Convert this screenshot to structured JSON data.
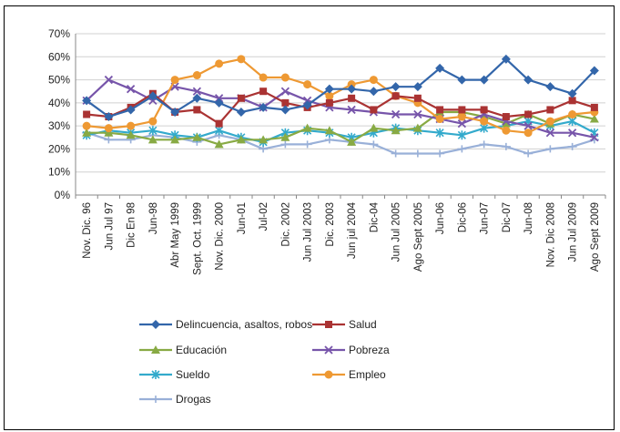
{
  "chart_data": {
    "type": "line",
    "ylim": [
      0,
      70
    ],
    "yticks": [
      "0%",
      "10%",
      "20%",
      "30%",
      "40%",
      "50%",
      "60%",
      "70%"
    ],
    "grid": true,
    "legend_position": "bottom",
    "categories": [
      "Nov. Dic. 96",
      "Jun Jul 97",
      "Dic En 98",
      "Jun-98",
      "Abr May 1999",
      "Sept. Oct. 1999",
      "Nov. Dic. 2000",
      "Jun-01",
      "Jul-02",
      "Dic. 2002",
      "Jun Jul 2003",
      "Dic. 2003",
      "Jun jul 2004",
      "Dic-04",
      "Jun Jul 2005",
      "Ago Sept 2005",
      "Jun-06",
      "Dic-06",
      "Jun-07",
      "Dic-07",
      "Jun-08",
      "Nov. Dic 2008",
      "Jun Jul 2009",
      "Ago Sept 2009"
    ],
    "series": [
      {
        "name": "Delincuencia, asaltos, robos",
        "color": "#3366aa",
        "marker": "diamond",
        "values": [
          41,
          34,
          37,
          43,
          36,
          42,
          40,
          36,
          38,
          37,
          39,
          46,
          46,
          45,
          47,
          47,
          55,
          50,
          50,
          59,
          50,
          47,
          44,
          54
        ]
      },
      {
        "name": "Salud",
        "color": "#aa3333",
        "marker": "square",
        "values": [
          35,
          34,
          38,
          44,
          36,
          37,
          31,
          42,
          45,
          40,
          38,
          40,
          42,
          37,
          43,
          42,
          37,
          37,
          37,
          34,
          35,
          37,
          41,
          38
        ]
      },
      {
        "name": "Educación",
        "color": "#88aa44",
        "marker": "triangle",
        "values": [
          27,
          27,
          26,
          24,
          24,
          25,
          22,
          24,
          24,
          25,
          29,
          28,
          23,
          29,
          28,
          29,
          36,
          36,
          34,
          31,
          35,
          31,
          35,
          33
        ]
      },
      {
        "name": "Pobreza",
        "color": "#7755aa",
        "marker": "x",
        "values": [
          41,
          50,
          46,
          41,
          47,
          45,
          42,
          42,
          38,
          45,
          41,
          38,
          37,
          36,
          35,
          35,
          33,
          31,
          35,
          32,
          30,
          27,
          27,
          25
        ]
      },
      {
        "name": "Sueldo",
        "color": "#33aacc",
        "marker": "asterisk",
        "values": [
          26,
          28,
          27,
          28,
          26,
          25,
          28,
          25,
          23,
          27,
          28,
          27,
          25,
          27,
          29,
          28,
          27,
          26,
          29,
          30,
          32,
          30,
          32,
          27
        ]
      },
      {
        "name": "Empleo",
        "color": "#ee9933",
        "marker": "circle",
        "values": [
          30,
          29,
          30,
          32,
          50,
          52,
          57,
          59,
          51,
          51,
          48,
          43,
          48,
          50,
          43,
          40,
          33,
          34,
          32,
          28,
          27,
          32,
          35,
          36
        ]
      },
      {
        "name": "Drogas",
        "color": "#99b0d8",
        "marker": "plus",
        "values": [
          27,
          24,
          24,
          26,
          25,
          23,
          26,
          24,
          20,
          22,
          22,
          24,
          23,
          22,
          18,
          18,
          18,
          20,
          22,
          21,
          18,
          20,
          21,
          24
        ]
      }
    ]
  }
}
